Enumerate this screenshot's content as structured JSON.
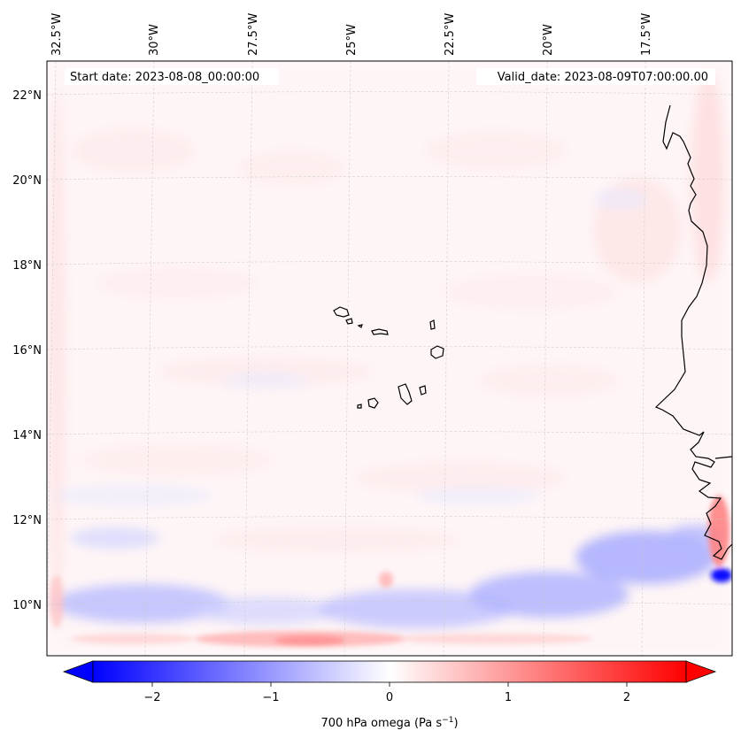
{
  "header": {
    "start_date": "Start date: 2023-08-08_00:00:00",
    "valid_date": "Valid_date: 2023-08-09T07:00:00.00"
  },
  "map": {
    "lon_labels": [
      "32.5°W",
      "30°W",
      "27.5°W",
      "25°W",
      "22.5°W",
      "20°W",
      "17.5°W"
    ],
    "lat_labels": [
      "22°N",
      "20°N",
      "18°N",
      "16°N",
      "14°N",
      "12°N",
      "10°N"
    ],
    "gridlines": true,
    "features": [
      "Cape Verde islands",
      "West African coastline"
    ]
  },
  "colorbar": {
    "ticks": [
      "−2",
      "−1",
      "0",
      "1",
      "2"
    ],
    "tick_values": [
      -2,
      -1,
      0,
      1,
      2
    ],
    "range": [
      -2.5,
      2.5
    ],
    "label_main": "700 hPa omega (Pa s",
    "label_sup": "−1",
    "label_close": ")",
    "colormap": "bwr",
    "extend": "both"
  },
  "colors": {
    "negative": "#0000ff",
    "neutral": "#ffffff",
    "positive": "#ff0000"
  }
}
